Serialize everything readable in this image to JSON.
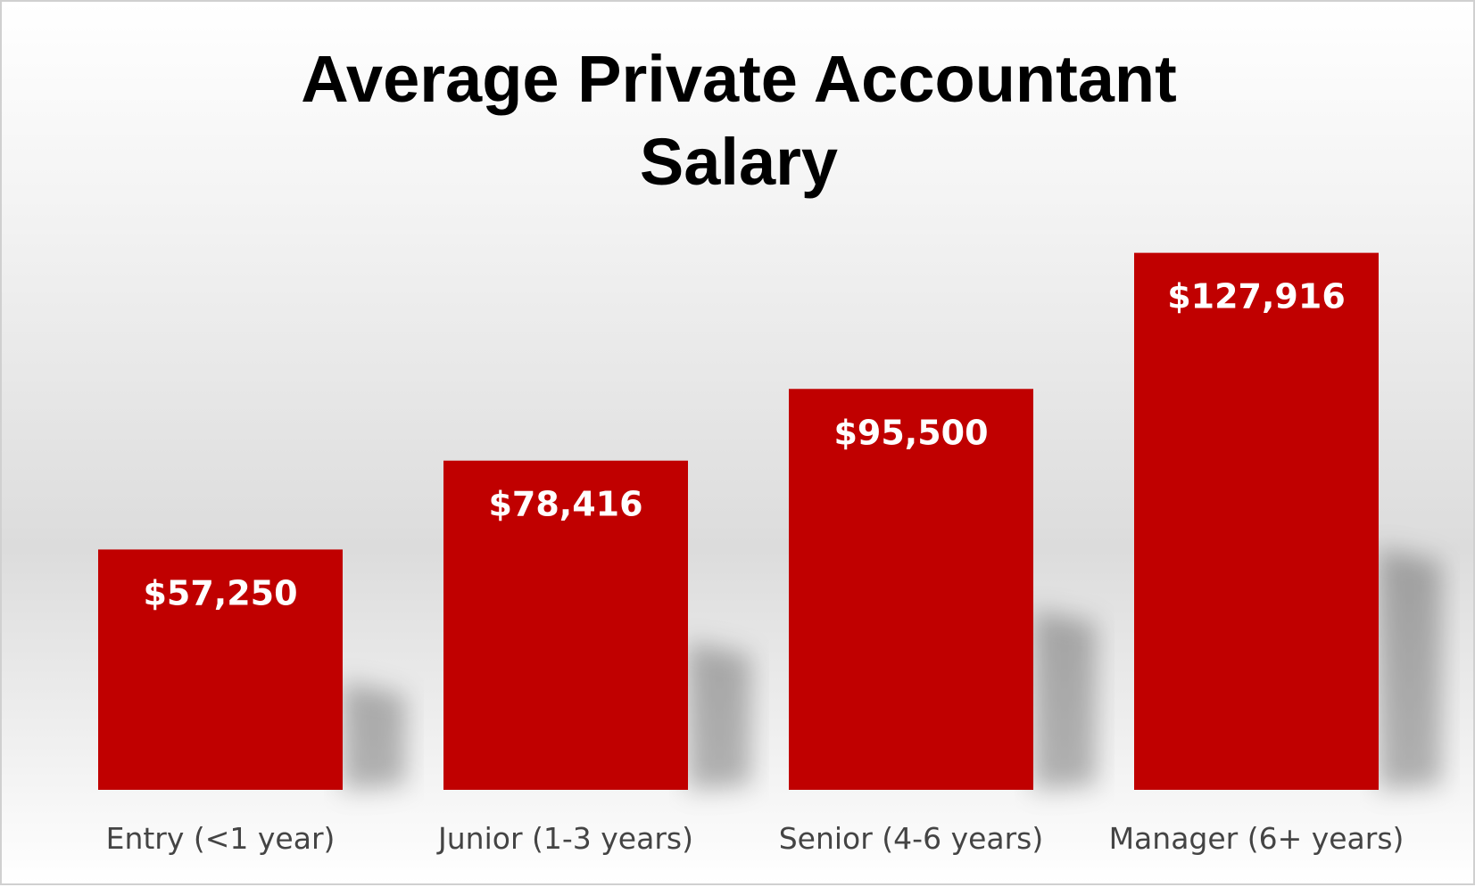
{
  "chart_data": {
    "type": "bar",
    "title_lines": [
      "Average Private Accountant",
      "Salary"
    ],
    "categories": [
      "Entry (<1 year)",
      "Junior (1-3 years)",
      "Senior (4-6 years)",
      "Manager (6+ years)"
    ],
    "values": [
      57250,
      78416,
      95500,
      127916
    ],
    "data_labels": [
      "$57,250",
      "$78,416",
      "$95,500",
      "$127,916"
    ],
    "bar_color": "#C00000",
    "ylim": [
      0,
      141000
    ],
    "grid": false,
    "legend": "none"
  }
}
